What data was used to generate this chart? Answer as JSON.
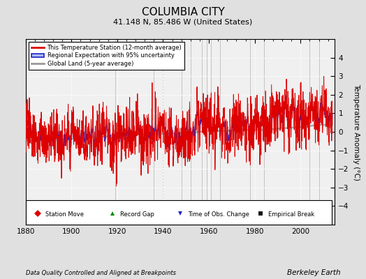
{
  "title": "COLUMBIA CITY",
  "subtitle": "41.148 N, 85.486 W (United States)",
  "ylabel": "Temperature Anomaly (°C)",
  "footer_left": "Data Quality Controlled and Aligned at Breakpoints",
  "footer_right": "Berkeley Earth",
  "xlim": [
    1880,
    2015
  ],
  "ylim": [
    -5,
    5
  ],
  "yticks": [
    -4,
    -3,
    -2,
    -1,
    0,
    1,
    2,
    3,
    4
  ],
  "xticks": [
    1880,
    1900,
    1920,
    1940,
    1960,
    1980,
    2000
  ],
  "bg_color": "#e0e0e0",
  "plot_bg_color": "#f0f0f0",
  "station_moves": [
    1948,
    1952,
    1957,
    1961,
    1965,
    2004,
    2008
  ],
  "record_gaps": [
    1919,
    1936
  ],
  "obs_changes": [
    1959
  ],
  "empirical_breaks": [
    1940,
    1978,
    1984
  ],
  "red_color": "#dd0000",
  "blue_color": "#2222cc",
  "blue_fill_color": "#aabbee",
  "gray_color": "#999999",
  "seed": 137
}
